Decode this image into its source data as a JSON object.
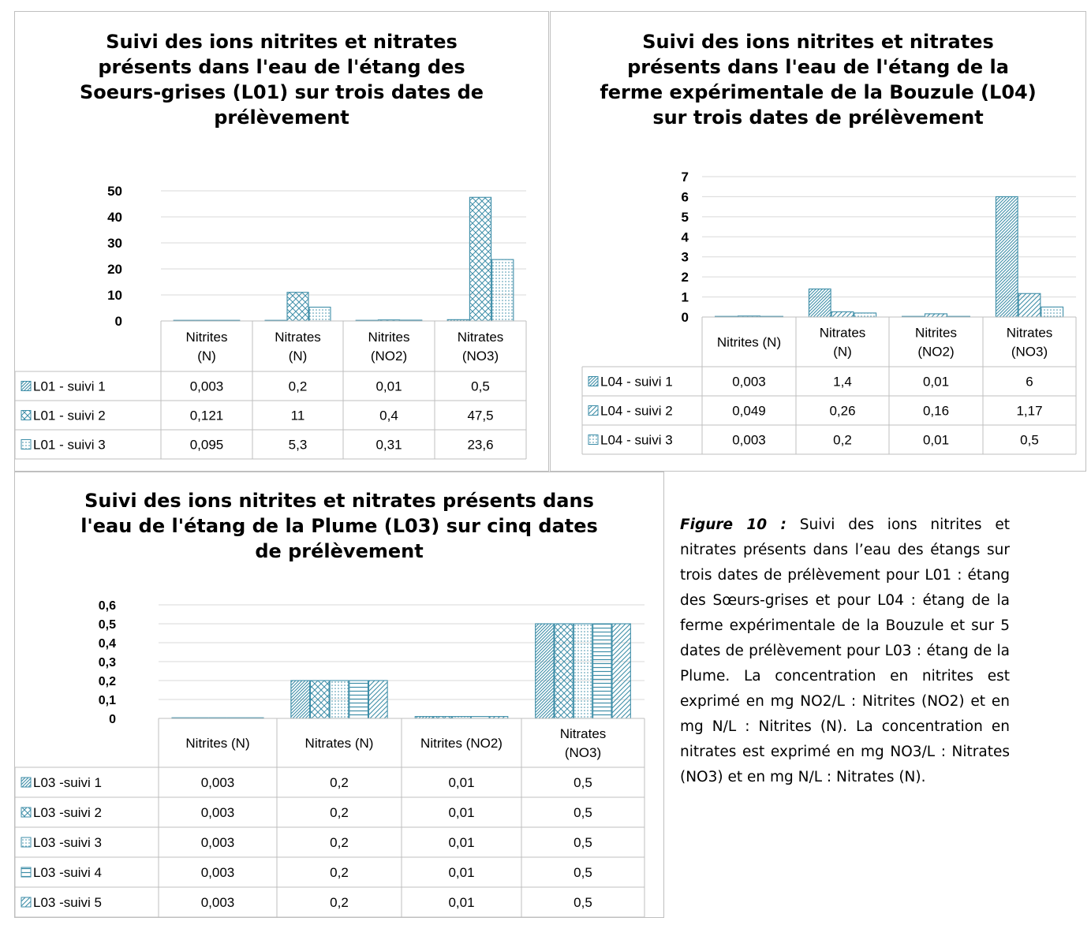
{
  "colors": {
    "bar": "#3e8ea8",
    "grid": "#d9d9d9",
    "table_border": "#bfbfbf"
  },
  "chart_data": [
    {
      "type": "bar",
      "title": "Suivi des ions nitrites et nitrates présents dans l'eau de l'étang des Soeurs-grises (L01) sur trois dates de prélèvement",
      "title_lines": [
        "Suivi des ions nitrites et nitrates",
        "présents dans l'eau de l'étang des",
        "Soeurs-grises (L01) sur trois dates de",
        "prélèvement"
      ],
      "categories": [
        "Nitrites (N)",
        "Nitrates (N)",
        "Nitrites (NO2)",
        "Nitrates (NO3)"
      ],
      "category_lines": [
        [
          "Nitrites",
          "(N)"
        ],
        [
          "Nitrates",
          "(N)"
        ],
        [
          "Nitrites",
          "(NO2)"
        ],
        [
          "Nitrates",
          "(NO3)"
        ]
      ],
      "yticks": [
        "0",
        "10",
        "20",
        "30",
        "40",
        "50"
      ],
      "ylim": [
        0,
        50
      ],
      "grid": true,
      "legend": "data-table",
      "series": [
        {
          "name": "L01 - suivi 1",
          "values": [
            0.003,
            0.2,
            0.01,
            0.5
          ],
          "labels": [
            "0,003",
            "0,2",
            "0,01",
            "0,5"
          ],
          "pattern": "diag-dense"
        },
        {
          "name": "L01 - suivi 2",
          "values": [
            0.121,
            11,
            0.4,
            47.5
          ],
          "labels": [
            "0,121",
            "11",
            "0,4",
            "47,5"
          ],
          "pattern": "cross"
        },
        {
          "name": "L01 - suivi 3",
          "values": [
            0.095,
            5.3,
            0.31,
            23.6
          ],
          "labels": [
            "0,095",
            "5,3",
            "0,31",
            "23,6"
          ],
          "pattern": "dots"
        }
      ]
    },
    {
      "type": "bar",
      "title": "Suivi des ions nitrites et nitrates présents dans l'eau de l'étang de la ferme expérimentale de la Bouzule (L04) sur trois dates de prélèvement",
      "title_lines": [
        "Suivi des ions nitrites et nitrates",
        "présents dans l'eau de l'étang de la",
        "ferme expérimentale de la Bouzule (L04)",
        "sur trois dates de prélèvement"
      ],
      "categories": [
        "Nitrites (N)",
        "Nitrates (N)",
        "Nitrites (NO2)",
        "Nitrates (NO3)"
      ],
      "category_lines": [
        [
          "Nitrites (N)"
        ],
        [
          "Nitrates",
          "(N)"
        ],
        [
          "Nitrites",
          "(NO2)"
        ],
        [
          "Nitrates",
          "(NO3)"
        ]
      ],
      "yticks": [
        "0",
        "1",
        "2",
        "3",
        "4",
        "5",
        "6",
        "7"
      ],
      "ylim": [
        0,
        7
      ],
      "grid": true,
      "legend": "data-table",
      "series": [
        {
          "name": "L04 - suivi 1",
          "values": [
            0.003,
            1.4,
            0.01,
            6
          ],
          "labels": [
            "0,003",
            "1,4",
            "0,01",
            "6"
          ],
          "pattern": "diag-dense"
        },
        {
          "name": "L04 - suivi 2",
          "values": [
            0.049,
            0.26,
            0.16,
            1.17
          ],
          "labels": [
            "0,049",
            "0,26",
            "0,16",
            "1,17"
          ],
          "pattern": "diag-wide"
        },
        {
          "name": "L04 - suivi 3",
          "values": [
            0.003,
            0.2,
            0.01,
            0.5
          ],
          "labels": [
            "0,003",
            "0,2",
            "0,01",
            "0,5"
          ],
          "pattern": "dots"
        }
      ]
    },
    {
      "type": "bar",
      "title": "Suivi des ions nitrites et nitrates présents dans l'eau de l'étang de la Plume (L03) sur cinq dates de prélèvement",
      "title_lines": [
        "Suivi des ions nitrites et nitrates présents dans",
        "l'eau de l'étang de la Plume (L03) sur cinq dates",
        "de prélèvement"
      ],
      "categories": [
        "Nitrites (N)",
        "Nitrates (N)",
        "Nitrites (NO2)",
        "Nitrates (NO3)"
      ],
      "category_lines": [
        [
          "Nitrites (N)"
        ],
        [
          "Nitrates (N)"
        ],
        [
          "Nitrites (NO2)"
        ],
        [
          "Nitrates",
          "(NO3)"
        ]
      ],
      "yticks": [
        "0",
        "0,1",
        "0,2",
        "0,3",
        "0,4",
        "0,5",
        "0,6"
      ],
      "ylim": [
        0,
        0.6
      ],
      "grid": true,
      "legend": "data-table",
      "series": [
        {
          "name": "L03 -suivi 1",
          "values": [
            0.003,
            0.2,
            0.01,
            0.5
          ],
          "labels": [
            "0,003",
            "0,2",
            "0,01",
            "0,5"
          ],
          "pattern": "diag-dense"
        },
        {
          "name": "L03 -suivi 2",
          "values": [
            0.003,
            0.2,
            0.01,
            0.5
          ],
          "labels": [
            "0,003",
            "0,2",
            "0,01",
            "0,5"
          ],
          "pattern": "cross"
        },
        {
          "name": "L03 -suivi 3",
          "values": [
            0.003,
            0.2,
            0.01,
            0.5
          ],
          "labels": [
            "0,003",
            "0,2",
            "0,01",
            "0,5"
          ],
          "pattern": "dots"
        },
        {
          "name": "L03 -suivi 4",
          "values": [
            0.003,
            0.2,
            0.01,
            0.5
          ],
          "labels": [
            "0,003",
            "0,2",
            "0,01",
            "0,5"
          ],
          "pattern": "hlines"
        },
        {
          "name": "L03 -suivi 5",
          "values": [
            0.003,
            0.2,
            0.01,
            0.5
          ],
          "labels": [
            "0,003",
            "0,2",
            "0,01",
            "0,5"
          ],
          "pattern": "diag-wide"
        }
      ]
    }
  ],
  "caption": {
    "lead": "Figure 10 :",
    "text": " Suivi des ions nitrites et nitrates présents dans l’eau des étangs sur trois dates de prélèvement pour L01 : étang des Sœurs-grises et pour L04 : étang de la ferme expérimentale de la Bouzule et sur 5 dates de prélèvement pour L03 : étang de la Plume. La concentration en nitrites est exprimé en mg NO2/L : Nitrites (NO2) et en mg N/L : Nitrites (N). La concentration en nitrates est exprimé en mg NO3/L : Nitrates (NO3) et en mg N/L : Nitrates (N)."
  }
}
